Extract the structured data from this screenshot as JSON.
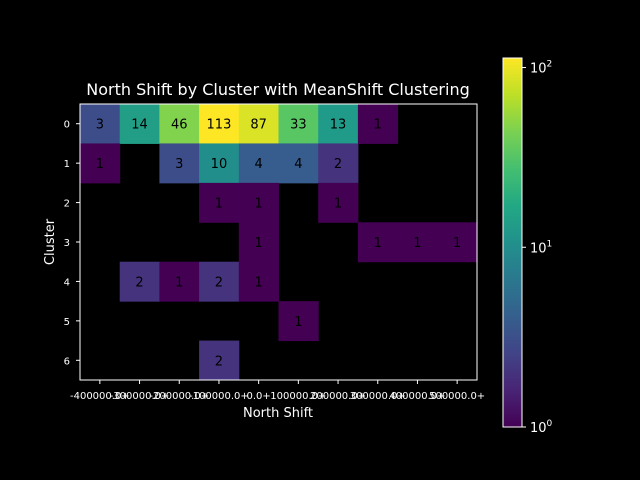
{
  "chart_data": {
    "type": "heatmap",
    "title": "North Shift by Cluster with MeanShift Clustering",
    "xlabel": "North Shift",
    "ylabel": "Cluster",
    "x_categories": [
      "-400000.0+",
      "-300000.0+",
      "-200000.0+",
      "-100000.0+",
      "0.0+",
      "100000.0+",
      "200000.0+",
      "300000.0+",
      "400000.0+",
      "500000.0+"
    ],
    "y_categories": [
      "0",
      "1",
      "2",
      "3",
      "4",
      "5",
      "6"
    ],
    "values": [
      [
        3,
        14,
        46,
        113,
        87,
        33,
        13,
        1,
        null,
        null
      ],
      [
        1,
        null,
        3,
        10,
        4,
        4,
        2,
        null,
        null,
        null
      ],
      [
        null,
        null,
        null,
        1,
        1,
        null,
        1,
        null,
        null,
        null
      ],
      [
        null,
        null,
        null,
        null,
        1,
        null,
        null,
        1,
        1,
        1
      ],
      [
        null,
        2,
        1,
        2,
        1,
        null,
        null,
        null,
        null,
        null
      ],
      [
        null,
        null,
        null,
        null,
        null,
        1,
        null,
        null,
        null,
        null
      ],
      [
        null,
        null,
        null,
        2,
        null,
        null,
        null,
        null,
        null,
        null
      ]
    ],
    "colorbar": {
      "scale": "log",
      "min": 1,
      "max": 113,
      "colormap": "viridis",
      "tick_labels": [
        {
          "base": "10",
          "exp": "0",
          "value": 1
        },
        {
          "base": "10",
          "exp": "1",
          "value": 10
        },
        {
          "base": "10",
          "exp": "2",
          "value": 100
        }
      ]
    },
    "colors": {
      "background": "#000000",
      "foreground": "#ffffff",
      "annotation": "#000000"
    }
  }
}
